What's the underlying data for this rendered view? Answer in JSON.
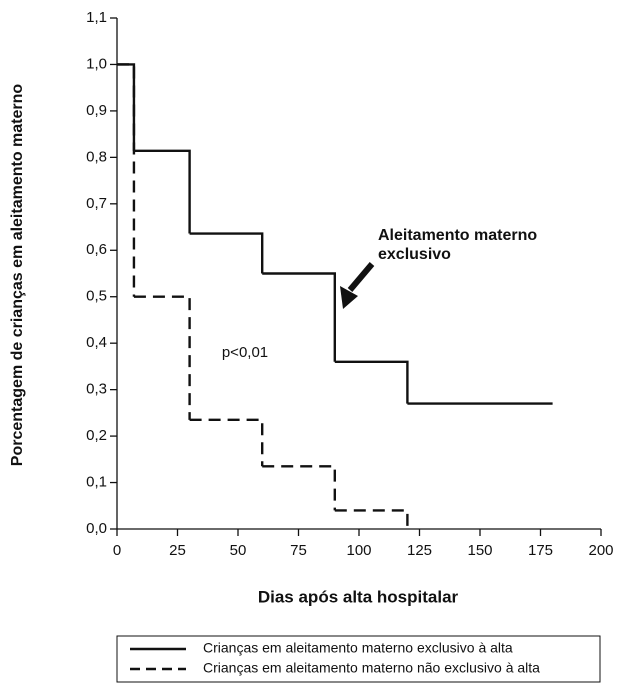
{
  "chart_data": {
    "type": "step",
    "x_label": "Dias após alta hospitalar",
    "y_label": "Porcentagem de crianças em aleitamento materno",
    "annotation": "Aleitamento materno exclusivo",
    "p_value": "p<0,01",
    "xlim": [
      0,
      200
    ],
    "xticks": [
      0,
      25,
      50,
      75,
      100,
      125,
      150,
      175,
      200
    ],
    "ylim": [
      0,
      1.1
    ],
    "yticks": [
      {
        "value": 0,
        "label": "0,0"
      },
      {
        "value": 0.1,
        "label": "0,1"
      },
      {
        "value": 0.2,
        "label": "0,2"
      },
      {
        "value": 0.3,
        "label": "0,3"
      },
      {
        "value": 0.4,
        "label": "0,4"
      },
      {
        "value": 0.5,
        "label": "0,5"
      },
      {
        "value": 0.6,
        "label": "0,6"
      },
      {
        "value": 0.7,
        "label": "0,7"
      },
      {
        "value": 0.8,
        "label": "0,8"
      },
      {
        "value": 0.9,
        "label": "0,9"
      },
      {
        "value": 1.0,
        "label": "1,0"
      },
      {
        "value": 1.1,
        "label": "1,1"
      }
    ],
    "series": [
      {
        "name": "Crianças em aleitamento materno exclusivo à alta",
        "color": "#111111",
        "dash": "solid",
        "x": [
          0,
          7,
          30,
          60,
          90,
          120,
          180
        ],
        "values": [
          1.0,
          0.814,
          0.636,
          0.55,
          0.36,
          0.27,
          0.27
        ]
      },
      {
        "name": "Crianças em aleitamento materno não exclusivo à alta",
        "color": "#111111",
        "dash": "dashed",
        "x": [
          0,
          7,
          30,
          60,
          90,
          120
        ],
        "values": [
          1.0,
          0.5,
          0.235,
          0.135,
          0.04,
          0.0
        ]
      }
    ]
  }
}
